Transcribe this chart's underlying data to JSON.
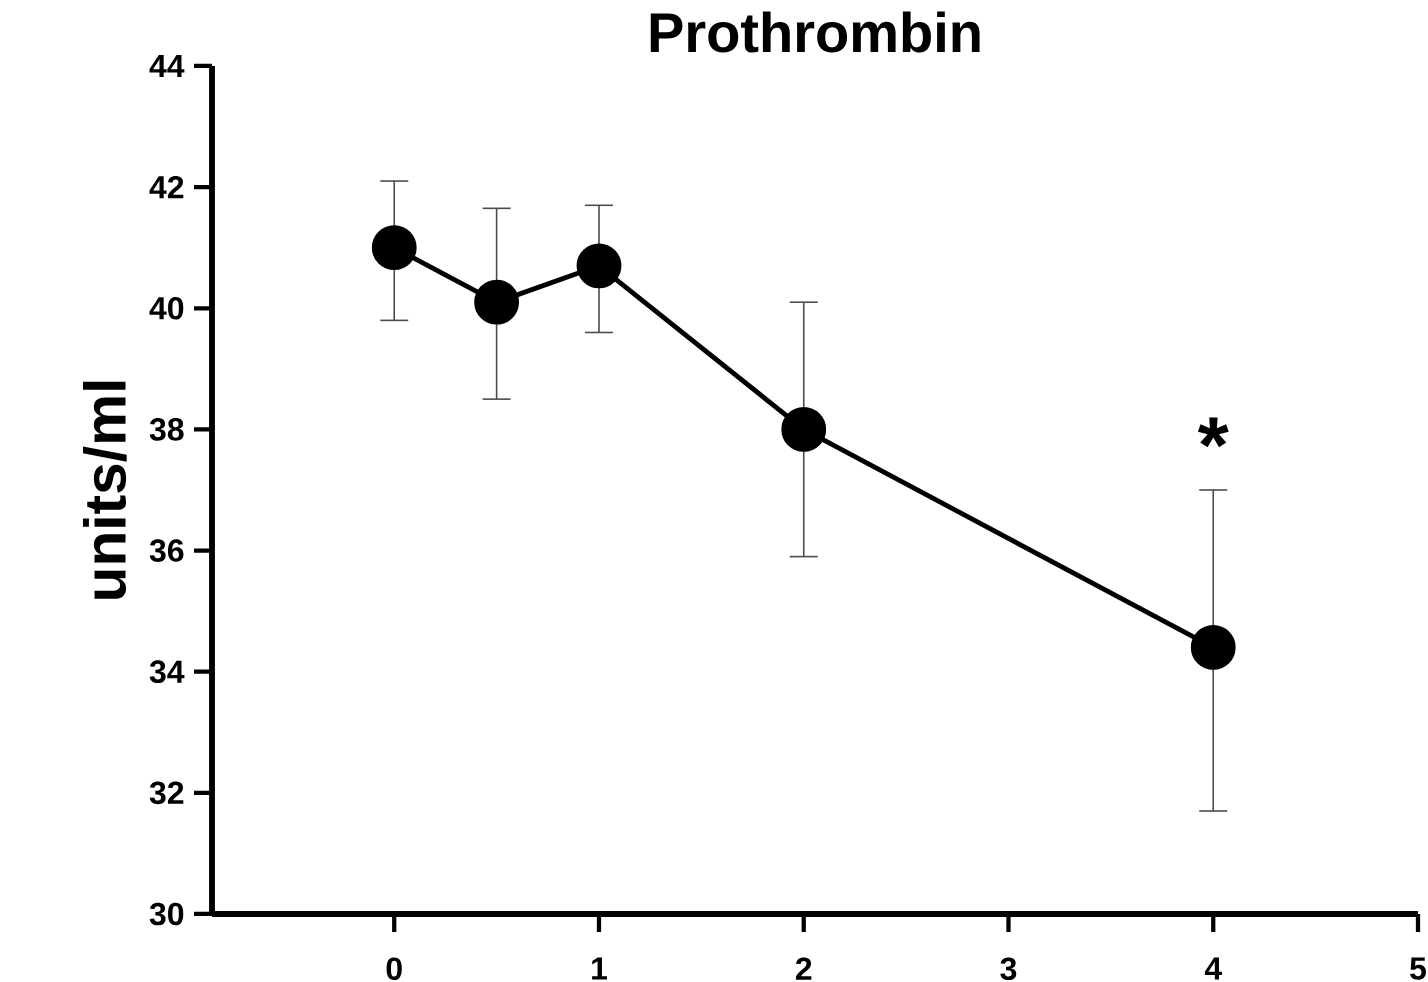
{
  "chart_data": {
    "type": "line",
    "title": "Prothrombin",
    "ylabel": "units/ml",
    "x": [
      0,
      0.5,
      1,
      2,
      4
    ],
    "series": [
      {
        "color": "#000000",
        "values": [
          41.0,
          40.1,
          40.7,
          38.0,
          34.4
        ],
        "errors": [
          [
            39.8,
            42.1
          ],
          [
            38.5,
            41.65
          ],
          [
            39.6,
            41.7
          ],
          [
            35.9,
            40.1
          ],
          [
            31.7,
            37.0
          ]
        ]
      }
    ],
    "xlim": [
      -0.89,
      5
    ],
    "xticks": [
      0,
      1,
      2,
      3,
      4,
      5
    ],
    "ylim": [
      30,
      44
    ],
    "yticks": [
      30,
      32,
      34,
      36,
      38,
      40,
      42,
      44
    ],
    "marker": "circle",
    "line_style": "solid",
    "annotations": [
      "*"
    ]
  }
}
